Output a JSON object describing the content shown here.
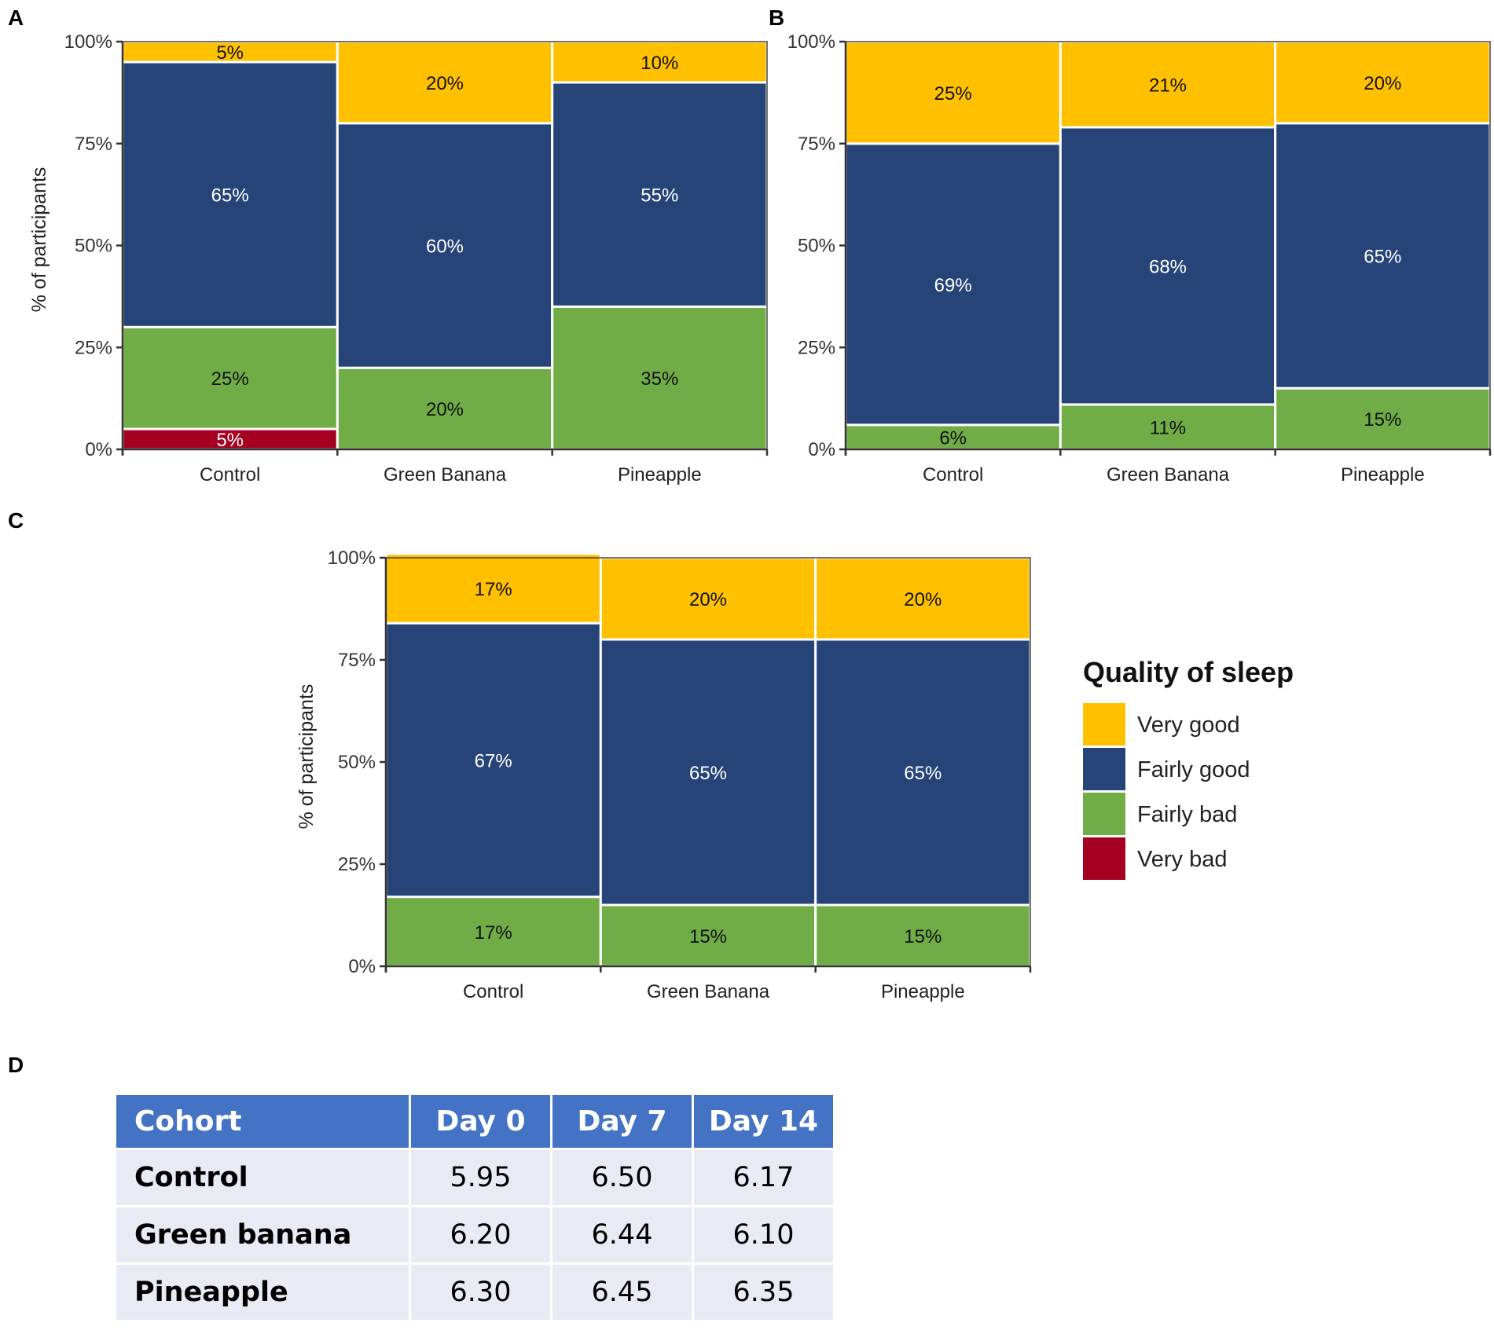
{
  "colors": {
    "very_good": "#ffc000",
    "fairly_good": "#264478",
    "fairly_bad": "#70ad47",
    "very_bad": "#a50021"
  },
  "panel_labels": {
    "a": "A",
    "b": "B",
    "c": "C",
    "d": "D"
  },
  "legend": {
    "title": "Quality of sleep",
    "items": [
      {
        "key": "very_good",
        "label": "Very good"
      },
      {
        "key": "fairly_good",
        "label": "Fairly good"
      },
      {
        "key": "fairly_bad",
        "label": "Fairly bad"
      },
      {
        "key": "very_bad",
        "label": "Very bad"
      }
    ]
  },
  "chart_data": [
    {
      "panel": "A",
      "type": "bar",
      "stacked": true,
      "title": "",
      "xlabel": "",
      "ylabel": "% of participants",
      "ylim": [
        0,
        100
      ],
      "yticks": [
        "0%",
        "25%",
        "50%",
        "75%",
        "100%"
      ],
      "categories": [
        "Control",
        "Green Banana",
        "Pineapple"
      ],
      "series": [
        {
          "name": "Very bad",
          "key": "very_bad",
          "values": [
            5,
            0,
            0
          ],
          "labels": [
            "5%",
            "",
            ""
          ]
        },
        {
          "name": "Fairly bad",
          "key": "fairly_bad",
          "values": [
            25,
            20,
            35
          ],
          "labels": [
            "25%",
            "20%",
            "35%"
          ]
        },
        {
          "name": "Fairly good",
          "key": "fairly_good",
          "values": [
            65,
            60,
            55
          ],
          "labels": [
            "65%",
            "60%",
            "55%"
          ]
        },
        {
          "name": "Very good",
          "key": "very_good",
          "values": [
            5,
            20,
            10
          ],
          "labels": [
            "5%",
            "20%",
            "10%"
          ]
        }
      ]
    },
    {
      "panel": "B",
      "type": "bar",
      "stacked": true,
      "title": "",
      "xlabel": "",
      "ylabel": "",
      "ylim": [
        0,
        100
      ],
      "yticks": [
        "0%",
        "25%",
        "50%",
        "75%",
        "100%"
      ],
      "categories": [
        "Control",
        "Green Banana",
        "Pineapple"
      ],
      "series": [
        {
          "name": "Very bad",
          "key": "very_bad",
          "values": [
            0,
            0,
            0
          ],
          "labels": [
            "",
            "",
            ""
          ]
        },
        {
          "name": "Fairly bad",
          "key": "fairly_bad",
          "values": [
            6,
            11,
            15
          ],
          "labels": [
            "6%",
            "11%",
            "15%"
          ]
        },
        {
          "name": "Fairly good",
          "key": "fairly_good",
          "values": [
            69,
            68,
            65
          ],
          "labels": [
            "69%",
            "68%",
            "65%"
          ]
        },
        {
          "name": "Very good",
          "key": "very_good",
          "values": [
            25,
            21,
            20
          ],
          "labels": [
            "25%",
            "21%",
            "20%"
          ]
        }
      ]
    },
    {
      "panel": "C",
      "type": "bar",
      "stacked": true,
      "title": "",
      "xlabel": "",
      "ylabel": "% of participants",
      "ylim": [
        0,
        100
      ],
      "yticks": [
        "0%",
        "25%",
        "50%",
        "75%",
        "100%"
      ],
      "categories": [
        "Control",
        "Green Banana",
        "Pineapple"
      ],
      "series": [
        {
          "name": "Very bad",
          "key": "very_bad",
          "values": [
            0,
            0,
            0
          ],
          "labels": [
            "",
            "",
            ""
          ]
        },
        {
          "name": "Fairly bad",
          "key": "fairly_bad",
          "values": [
            17,
            15,
            15
          ],
          "labels": [
            "17%",
            "15%",
            "15%"
          ]
        },
        {
          "name": "Fairly good",
          "key": "fairly_good",
          "values": [
            67,
            65,
            65
          ],
          "labels": [
            "67%",
            "65%",
            "65%"
          ]
        },
        {
          "name": "Very good",
          "key": "very_good",
          "values": [
            17,
            20,
            20
          ],
          "labels": [
            "17%",
            "20%",
            "20%"
          ]
        }
      ]
    },
    {
      "panel": "D",
      "type": "table",
      "columns": [
        "Cohort",
        "Day 0",
        "Day 7",
        "Day 14"
      ],
      "rows": [
        {
          "cohort": "Control",
          "values": [
            "5.95",
            "6.50",
            "6.17"
          ]
        },
        {
          "cohort": "Green banana",
          "values": [
            "6.20",
            "6.44",
            "6.10"
          ]
        },
        {
          "cohort": "Pineapple",
          "values": [
            "6.30",
            "6.45",
            "6.35"
          ]
        }
      ]
    }
  ]
}
